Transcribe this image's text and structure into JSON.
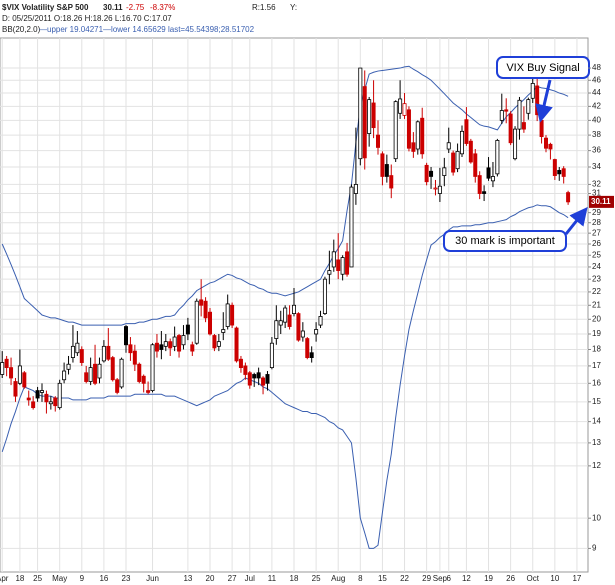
{
  "chart_data": {
    "type": "candlestick",
    "title": "$VIX Volatility S&P 500",
    "last_change": "-2.75",
    "last_change_pct": "-8.37%",
    "ratio": "R:1.56",
    "y_label": "Y:",
    "date_line": "D: 05/25/2011  O:18.26 H:18.26 L:16.70 C:17.07",
    "indicator": "BB(20,2.0)",
    "indicator_values": "—upper 19.04271—lower 14.65629 last=45.54398;28.51702",
    "annotations": [
      "VIX Buy Signal",
      "30 mark is important"
    ],
    "scale": "log",
    "grid": true,
    "up_color": "#000000",
    "down_color": "#cc0000",
    "hollow_color": "#ffffff",
    "last_label_color": "#a00000",
    "ylim": [
      8.29,
      53.3
    ],
    "yticks": [
      9,
      10,
      12,
      13,
      14,
      15,
      16,
      17,
      18,
      19,
      20,
      21,
      22,
      23,
      24,
      25,
      26,
      27,
      28,
      29,
      31,
      32,
      34,
      36,
      38,
      40,
      42,
      44,
      46,
      48
    ],
    "categories": [
      "Apr",
      null,
      null,
      null,
      "18",
      null,
      null,
      null,
      "25",
      null,
      null,
      null,
      null,
      "May",
      null,
      null,
      null,
      null,
      "9",
      null,
      null,
      null,
      null,
      "16",
      null,
      null,
      null,
      null,
      "23",
      null,
      null,
      null,
      null,
      null,
      "Jun",
      null,
      null,
      null,
      null,
      null,
      null,
      null,
      "13",
      null,
      null,
      null,
      null,
      "20",
      null,
      null,
      null,
      null,
      "27",
      null,
      null,
      null,
      "Jul",
      null,
      null,
      null,
      null,
      "11",
      null,
      null,
      null,
      null,
      "18",
      null,
      null,
      null,
      null,
      "25",
      null,
      null,
      null,
      null,
      "Aug",
      null,
      null,
      null,
      null,
      "8",
      null,
      null,
      null,
      null,
      "15",
      null,
      null,
      null,
      null,
      "22",
      null,
      null,
      null,
      null,
      "29",
      null,
      null,
      "Sep",
      null,
      "6",
      null,
      null,
      null,
      "12",
      null,
      null,
      null,
      null,
      "19",
      null,
      null,
      null,
      null,
      "26",
      null,
      null,
      null,
      null,
      "Oct",
      null,
      null,
      null,
      null,
      "10",
      null,
      null,
      null,
      null,
      "17",
      null,
      null
    ],
    "open": [
      16.5,
      17.4,
      16.9,
      16.1,
      16.0,
      16.6,
      15.2,
      15.0,
      15.6,
      15.5,
      15.4,
      14.9,
      15.2,
      14.7,
      16.2,
      16.8,
      17.5,
      17.8,
      18.0,
      16.6,
      16.1,
      17.1,
      16.3,
      17.3,
      18.2,
      17.5,
      16.2,
      15.8,
      19.5,
      18.3,
      17.9,
      17.1,
      16.4,
      15.6,
      15.6,
      18.4,
      18.3,
      18.2,
      18.5,
      18.2,
      18.9,
      18.3,
      19.6,
      18.3,
      18.4,
      21.4,
      21.3,
      20.5,
      18.9,
      18.2,
      19.1,
      19.5,
      21.0,
      19.4,
      17.4,
      17.0,
      16.6,
      16.5,
      16.6,
      16.3,
      16.5,
      16.9,
      18.7,
      19.6,
      19.8,
      20.3,
      20.4,
      20.4,
      18.8,
      18.7,
      17.8,
      19.0,
      19.6,
      20.4,
      23.4,
      24.0,
      24.6,
      23.4,
      25.3,
      24.0,
      31.0,
      35.0,
      45.0,
      38.2,
      42.5,
      38.0,
      35.6,
      34.3,
      33.0,
      35.0,
      41.0,
      40.7,
      41.5,
      37.0,
      36.2,
      40.3,
      34.2,
      33.5,
      31.5,
      31.0,
      33.0,
      36.2,
      35.7,
      33.8,
      35.6,
      40.1,
      37.2,
      35.6,
      33.0,
      31.2,
      33.9,
      32.4,
      33.2,
      40.0,
      41.5,
      40.9,
      35.0,
      38.8,
      39.7,
      41.0,
      43.2,
      45.1,
      40.0,
      37.6,
      36.8,
      34.9,
      33.6,
      33.8,
      31.1,
      null,
      null,
      null,
      null
    ],
    "high": [
      17.9,
      17.6,
      17.5,
      16.3,
      18.0,
      16.7,
      15.6,
      15.3,
      15.8,
      16.0,
      15.6,
      15.3,
      15.3,
      16.2,
      17.2,
      17.6,
      19.6,
      19.2,
      18.2,
      17.0,
      17.5,
      18.3,
      17.5,
      18.6,
      19.4,
      17.6,
      16.3,
      17.5,
      19.6,
      18.8,
      18.3,
      17.2,
      16.5,
      16.1,
      18.4,
      19.0,
      19.2,
      19.0,
      18.7,
      19.5,
      19.0,
      19.6,
      20.1,
      18.5,
      21.5,
      23.0,
      21.6,
      20.8,
      19.0,
      19.0,
      20.5,
      21.8,
      21.2,
      19.5,
      17.6,
      17.2,
      16.7,
      16.6,
      16.9,
      16.4,
      16.7,
      18.8,
      21.0,
      20.6,
      21.0,
      21.0,
      22.3,
      20.5,
      19.8,
      18.8,
      18.2,
      19.8,
      20.6,
      23.2,
      25.4,
      26.4,
      27.0,
      25.0,
      26.1,
      32.0,
      39.0,
      48.0,
      47.6,
      43.4,
      46.0,
      40.0,
      35.9,
      35.5,
      34.3,
      42.9,
      46.0,
      44.0,
      42.0,
      38.4,
      40.0,
      41.8,
      34.5,
      34.0,
      32.5,
      33.9,
      35.1,
      39.0,
      36.0,
      36.9,
      39.3,
      41.9,
      37.5,
      36.2,
      33.5,
      31.9,
      35.2,
      34.6,
      37.5,
      43.9,
      43.2,
      41.3,
      39.2,
      43.4,
      42.0,
      43.3,
      46.9,
      46.9,
      40.5,
      38.0,
      37.0,
      35.0,
      34.0,
      34.1,
      31.3,
      null,
      null,
      null,
      null
    ],
    "low": [
      16.3,
      16.4,
      15.9,
      15.0,
      15.9,
      15.7,
      14.8,
      14.6,
      15.0,
      15.0,
      14.4,
      14.6,
      14.5,
      14.6,
      16.0,
      16.5,
      17.2,
      17.6,
      17.0,
      16.0,
      15.9,
      15.9,
      16.0,
      17.2,
      17.3,
      16.1,
      15.4,
      15.7,
      17.8,
      17.3,
      16.7,
      16.0,
      15.5,
      15.4,
      15.5,
      17.5,
      17.4,
      17.9,
      17.6,
      17.9,
      17.5,
      18.0,
      18.6,
      17.6,
      18.3,
      20.2,
      19.8,
      18.9,
      17.9,
      17.9,
      18.6,
      19.3,
      19.4,
      17.2,
      16.6,
      16.2,
      15.7,
      15.8,
      15.9,
      15.4,
      15.6,
      16.8,
      18.3,
      19.0,
      19.4,
      19.3,
      20.2,
      18.5,
      18.5,
      17.4,
      17.2,
      18.5,
      19.4,
      20.3,
      22.6,
      23.6,
      23.0,
      22.9,
      23.2,
      24.0,
      29.8,
      34.2,
      33.7,
      36.5,
      37.6,
      35.5,
      31.9,
      32.2,
      30.5,
      34.6,
      40.2,
      40.2,
      35.9,
      35.1,
      35.5,
      35.0,
      31.9,
      31.5,
      30.8,
      30.1,
      31.8,
      35.7,
      33.0,
      33.4,
      35.2,
      36.6,
      34.4,
      32.2,
      30.4,
      30.2,
      32.4,
      31.7,
      32.9,
      39.5,
      39.6,
      36.7,
      34.8,
      37.4,
      38.3,
      40.1,
      42.5,
      39.9,
      36.9,
      35.8,
      34.9,
      32.5,
      32.4,
      32.1,
      29.8,
      null,
      null,
      null,
      null
    ],
    "close": [
      17.2,
      16.9,
      16.3,
      15.3,
      17.0,
      15.8,
      15.1,
      14.7,
      15.2,
      15.6,
      15.0,
      15.0,
      14.8,
      16.0,
      16.7,
      17.1,
      18.2,
      18.4,
      17.2,
      16.1,
      16.9,
      16.0,
      17.1,
      18.2,
      17.4,
      16.2,
      15.5,
      17.4,
      18.3,
      17.8,
      17.1,
      16.1,
      16.0,
      15.5,
      18.3,
      17.9,
      18.0,
      18.5,
      18.1,
      18.8,
      17.9,
      18.9,
      19.0,
      17.9,
      21.3,
      21.0,
      20.1,
      19.0,
      18.1,
      18.5,
      19.3,
      21.1,
      19.6,
      17.3,
      16.9,
      16.5,
      15.9,
      16.3,
      16.3,
      15.9,
      16.0,
      18.4,
      19.9,
      19.9,
      20.8,
      19.5,
      21.0,
      18.6,
      19.2,
      17.5,
      17.5,
      19.3,
      20.2,
      23.0,
      23.7,
      25.3,
      23.7,
      24.8,
      23.4,
      31.7,
      32.0,
      48.0,
      35.1,
      43.0,
      39.0,
      36.4,
      32.9,
      32.9,
      31.6,
      42.7,
      43.1,
      42.4,
      36.3,
      35.9,
      39.8,
      35.6,
      32.3,
      32.9,
      31.6,
      31.8,
      33.9,
      37.0,
      33.4,
      35.9,
      38.5,
      36.9,
      34.6,
      32.9,
      31.0,
      31.0,
      32.7,
      32.9,
      37.3,
      41.4,
      41.3,
      37.0,
      38.8,
      42.9,
      38.8,
      43.0,
      45.5,
      40.8,
      37.8,
      36.3,
      36.2,
      33.0,
      33.2,
      32.9,
      30.11,
      null,
      null,
      null,
      null
    ],
    "bb_upper": {
      "color": "#3a5fb0",
      "values": [
        26.0,
        25.1,
        24.2,
        23.3,
        22.4,
        21.5,
        21.2,
        20.9,
        20.6,
        20.3,
        20.2,
        20.1,
        20.1,
        20.0,
        19.9,
        19.8,
        19.8,
        19.7,
        19.6,
        19.6,
        19.6,
        19.6,
        19.6,
        19.6,
        19.6,
        19.6,
        19.6,
        19.6,
        19.7,
        19.7,
        19.7,
        19.8,
        19.8,
        19.9,
        20.0,
        20.0,
        20.1,
        20.2,
        20.2,
        20.3,
        20.7,
        21.0,
        21.4,
        21.7,
        22.1,
        22.3,
        22.5,
        22.7,
        22.8,
        23.0,
        23.2,
        23.4,
        23.3,
        23.1,
        23.0,
        22.8,
        22.6,
        22.5,
        22.3,
        22.2,
        22.0,
        21.9,
        21.9,
        21.8,
        21.7,
        21.8,
        21.9,
        22.0,
        22.2,
        22.4,
        22.6,
        22.8,
        23.0,
        23.7,
        24.3,
        25.0,
        25.6,
        26.3,
        29.2,
        32.0,
        37.0,
        42.0,
        44.5,
        47.0,
        47.3,
        47.5,
        47.6,
        47.7,
        47.8,
        47.9,
        48.0,
        48.2,
        48.3,
        47.8,
        47.4,
        46.9,
        46.5,
        46.0,
        45.3,
        44.6,
        43.9,
        43.2,
        42.5,
        42.0,
        41.5,
        40.9,
        40.4,
        39.9,
        39.4,
        39.2,
        39.1,
        38.9,
        38.7,
        39.6,
        40.5,
        41.1,
        41.8,
        42.4,
        43.0,
        43.7,
        44.3,
        45.0,
        44.8,
        44.7,
        44.5,
        44.3,
        44.0,
        43.8,
        43.5,
        null,
        null,
        null,
        null
      ]
    },
    "bb_lower": {
      "color": "#3a5fb0",
      "values": [
        12.6,
        13.2,
        13.9,
        14.5,
        15.2,
        15.8,
        15.7,
        15.6,
        15.4,
        15.3,
        15.3,
        15.3,
        15.2,
        15.2,
        15.2,
        15.2,
        15.1,
        15.1,
        15.1,
        15.1,
        15.2,
        15.2,
        15.2,
        15.2,
        15.3,
        15.3,
        15.3,
        15.3,
        15.3,
        15.3,
        15.4,
        15.4,
        15.4,
        15.4,
        15.4,
        15.4,
        15.4,
        15.3,
        15.3,
        15.3,
        15.2,
        15.1,
        15.0,
        14.9,
        14.8,
        14.9,
        15.0,
        15.1,
        15.3,
        15.4,
        15.5,
        15.6,
        15.8,
        16.0,
        16.1,
        16.3,
        16.2,
        16.1,
        16.0,
        15.8,
        15.7,
        15.5,
        15.3,
        15.1,
        14.9,
        14.8,
        14.7,
        14.6,
        14.5,
        14.5,
        14.4,
        14.4,
        14.3,
        14.2,
        14.0,
        13.9,
        13.7,
        13.6,
        13.3,
        13.0,
        11.5,
        10.0,
        9.5,
        9.0,
        9.0,
        9.1,
        10.2,
        11.4,
        12.5,
        14.2,
        15.9,
        17.6,
        19.3,
        20.6,
        21.9,
        23.3,
        24.6,
        25.9,
        26.2,
        26.6,
        26.9,
        27.3,
        27.6,
        27.6,
        27.7,
        27.7,
        27.7,
        27.8,
        27.8,
        27.9,
        28.0,
        28.0,
        28.1,
        28.2,
        28.3,
        28.6,
        28.8,
        29.1,
        29.3,
        29.5,
        29.6,
        29.8,
        29.7,
        29.7,
        29.6,
        29.3,
        29.0,
        28.8,
        28.5,
        null,
        null,
        null,
        null
      ]
    }
  }
}
